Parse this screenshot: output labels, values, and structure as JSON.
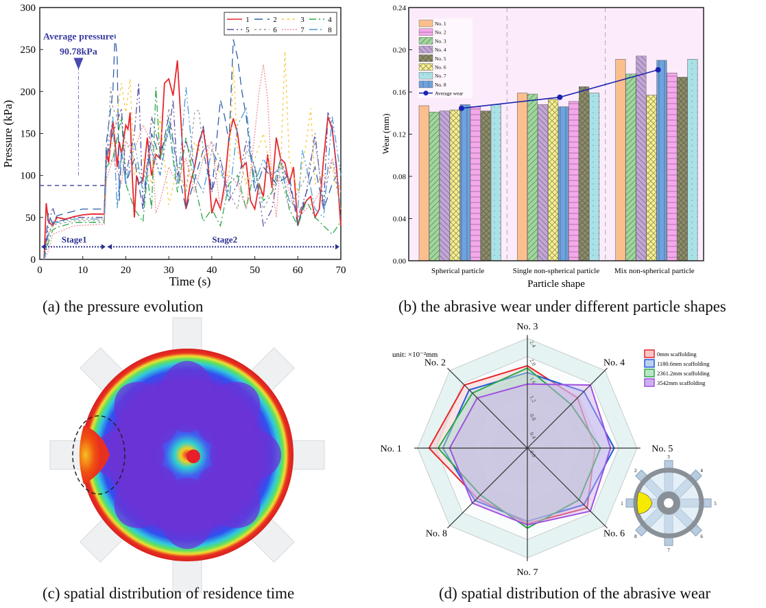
{
  "captions": {
    "a": "(a) the pressure evolution",
    "b": "(b) the abrasive wear under different particle shapes",
    "c": "(c) spatial distribution of residence time",
    "d": "(d) spatial distribution of the abrasive wear"
  },
  "chart_data": [
    {
      "id": "a",
      "type": "line",
      "title": "",
      "xlabel": "Time (s)",
      "ylabel": "Pressure (kPa)",
      "xlim": [
        0,
        70
      ],
      "ylim": [
        0,
        300
      ],
      "xticks": [
        0,
        10,
        20,
        30,
        40,
        50,
        60,
        70
      ],
      "yticks": [
        0,
        50,
        100,
        150,
        200,
        250,
        300
      ],
      "legend_position": "top-right",
      "annotations": {
        "average_label": "Average pressure",
        "average_value": "90.78kPa",
        "average_line_value": 88,
        "stage1": "Stage1",
        "stage2": "Stage2",
        "stage_boundary_x": 15.5
      },
      "series": [
        {
          "name": "1",
          "color": "#e8252b",
          "dash": "",
          "x": [
            1,
            1.5,
            2,
            3,
            4,
            6,
            8,
            10,
            12,
            15,
            15.5,
            16,
            17,
            17.5,
            18,
            18.5,
            19,
            20,
            20.5,
            21,
            21.5,
            22,
            22.5,
            23,
            24,
            25,
            26,
            27,
            28,
            29,
            30,
            31,
            32,
            33,
            34,
            35,
            36,
            37,
            38,
            39,
            40,
            41,
            42,
            43,
            44,
            45,
            46,
            47,
            48,
            49,
            50,
            51,
            52,
            53,
            54,
            55,
            56,
            57,
            58,
            59,
            60,
            61,
            62,
            63,
            64,
            65,
            66,
            67,
            68,
            69,
            70
          ],
          "y": [
            0,
            67,
            45,
            40,
            50,
            48,
            51,
            53,
            54,
            54,
            130,
            115,
            165,
            140,
            110,
            140,
            125,
            160,
            155,
            175,
            100,
            50,
            100,
            90,
            95,
            145,
            100,
            125,
            120,
            210,
            215,
            195,
            237,
            150,
            60,
            90,
            110,
            140,
            155,
            120,
            55,
            72,
            60,
            90,
            145,
            168,
            150,
            110,
            115,
            70,
            60,
            90,
            75,
            125,
            85,
            145,
            120,
            115,
            90,
            110,
            40,
            60,
            70,
            75,
            50,
            60,
            120,
            170,
            155,
            110,
            40
          ]
        },
        {
          "name": "2",
          "color": "#2e5da8",
          "dash": "12,7",
          "x": [
            1,
            2,
            3,
            4,
            6,
            10,
            15,
            15.5,
            16,
            17,
            17.5,
            18,
            18.5,
            19,
            20,
            22,
            24,
            26,
            28,
            30,
            32,
            34,
            36,
            38,
            40,
            42,
            43,
            44,
            45,
            46,
            47,
            48,
            50,
            52,
            55,
            58,
            60,
            62,
            64,
            66,
            68,
            70
          ],
          "y": [
            0,
            55,
            42,
            52,
            55,
            60,
            60,
            140,
            160,
            200,
            268,
            240,
            70,
            130,
            90,
            120,
            60,
            150,
            120,
            170,
            110,
            60,
            95,
            130,
            80,
            190,
            170,
            140,
            262,
            240,
            200,
            170,
            80,
            110,
            90,
            100,
            40,
            80,
            110,
            60,
            90,
            110
          ]
        },
        {
          "name": "3",
          "color": "#f7c52a",
          "dash": "3,5",
          "x": [
            1,
            2,
            3,
            4,
            8,
            15,
            15.5,
            17,
            19,
            20,
            21,
            22,
            24,
            26,
            28,
            30,
            32,
            34,
            36,
            38,
            40,
            42,
            44,
            45,
            46,
            48,
            50,
            52,
            54,
            56,
            57,
            58,
            60,
            62,
            63,
            64,
            66,
            68,
            70
          ],
          "y": [
            0,
            30,
            40,
            46,
            48,
            48,
            120,
            140,
            210,
            175,
            215,
            100,
            120,
            90,
            170,
            65,
            110,
            80,
            140,
            120,
            130,
            100,
            100,
            230,
            130,
            90,
            120,
            150,
            100,
            110,
            248,
            120,
            80,
            140,
            180,
            90,
            100,
            110,
            60
          ]
        },
        {
          "name": "4",
          "color": "#2aa84a",
          "dash": "10,4,2,4",
          "x": [
            1,
            2,
            3,
            4,
            8,
            15,
            15.5,
            17,
            19,
            20,
            22,
            24,
            25,
            26,
            27,
            28,
            30,
            32,
            34,
            36,
            38,
            40,
            42,
            44,
            46,
            48,
            50,
            52,
            54,
            56,
            58,
            60,
            62,
            64,
            66,
            68,
            70
          ],
          "y": [
            0,
            20,
            35,
            38,
            44,
            44,
            110,
            120,
            170,
            90,
            60,
            45,
            100,
            60,
            205,
            120,
            160,
            80,
            145,
            90,
            45,
            60,
            40,
            90,
            100,
            60,
            110,
            70,
            80,
            120,
            60,
            40,
            70,
            50,
            40,
            30,
            45
          ]
        },
        {
          "name": "5",
          "color": "#5a4fa0",
          "dash": "10,4,2,4,2,4",
          "x": [
            1,
            2,
            3,
            4,
            8,
            15,
            15.5,
            17,
            19,
            20,
            22,
            23,
            24,
            26,
            28,
            30,
            31,
            32,
            34,
            36,
            38,
            40,
            42,
            44,
            46,
            48,
            50,
            52,
            54,
            56,
            58,
            60,
            62,
            64,
            66,
            67,
            68,
            70
          ],
          "y": [
            0,
            40,
            62,
            45,
            50,
            50,
            120,
            150,
            180,
            100,
            150,
            210,
            60,
            170,
            130,
            150,
            190,
            100,
            140,
            110,
            160,
            80,
            120,
            70,
            90,
            140,
            110,
            40,
            60,
            120,
            90,
            50,
            80,
            150,
            60,
            175,
            160,
            50
          ]
        },
        {
          "name": "6",
          "color": "#9a9a9a",
          "dash": "3,4",
          "x": [
            1,
            2,
            3,
            4,
            8,
            15,
            15.5,
            16.5,
            17,
            19,
            20,
            22,
            24,
            26,
            28,
            30,
            32,
            34,
            36,
            37,
            38,
            40,
            42,
            44,
            46,
            48,
            50,
            52,
            54,
            56,
            58,
            60,
            62,
            64,
            66,
            68,
            70
          ],
          "y": [
            0,
            25,
            42,
            42,
            46,
            46,
            110,
            205,
            180,
            160,
            140,
            120,
            90,
            140,
            100,
            180,
            110,
            80,
            175,
            178,
            130,
            140,
            120,
            80,
            60,
            130,
            110,
            60,
            80,
            100,
            60,
            80,
            100,
            140,
            70,
            120,
            60
          ]
        },
        {
          "name": "7",
          "color": "#f28b96",
          "dash": "2,2",
          "x": [
            1,
            2,
            3,
            4,
            8,
            15,
            15.5,
            17,
            19,
            20,
            22,
            24,
            26,
            27,
            28,
            30,
            32,
            34,
            36,
            38,
            40,
            42,
            44,
            46,
            48,
            50,
            51,
            52,
            53,
            54,
            55,
            56,
            58,
            60,
            62,
            64,
            66,
            68,
            70
          ],
          "y": [
            0,
            10,
            30,
            32,
            40,
            42,
            95,
            120,
            90,
            140,
            130,
            160,
            140,
            55,
            70,
            110,
            90,
            120,
            80,
            120,
            140,
            60,
            100,
            90,
            60,
            150,
            200,
            232,
            190,
            90,
            50,
            120,
            80,
            50,
            60,
            70,
            90,
            120,
            80
          ]
        },
        {
          "name": "8",
          "color": "#4a9ad8",
          "dash": "12,4,2,4,2,4",
          "x": [
            1,
            2,
            3,
            4,
            8,
            15,
            15.5,
            17,
            18,
            19,
            20,
            22,
            24,
            26,
            28,
            30,
            32,
            33,
            34,
            36,
            38,
            40,
            42,
            44,
            46,
            48,
            50,
            52,
            54,
            56,
            58,
            60,
            61,
            62,
            64,
            66,
            68,
            70
          ],
          "y": [
            0,
            30,
            45,
            44,
            48,
            48,
            120,
            170,
            60,
            130,
            90,
            140,
            80,
            130,
            100,
            160,
            90,
            140,
            205,
            100,
            80,
            130,
            110,
            70,
            160,
            180,
            90,
            120,
            100,
            110,
            70,
            60,
            130,
            110,
            60,
            50,
            170,
            100
          ]
        }
      ]
    },
    {
      "id": "b",
      "type": "bar",
      "title": "",
      "xlabel": "Particle shape",
      "ylabel": "Wear (mm)",
      "ylim": [
        0,
        0.24
      ],
      "yticks": [
        "0.00",
        "0.04",
        "0.08",
        "0.12",
        "0.16",
        "0.20",
        "0.24"
      ],
      "categories": [
        "Spherical particle",
        "Single non-spherical particle",
        "Mix non-spherical particle"
      ],
      "bar_order": [
        "No. 1",
        "No. 3",
        "No. 4",
        "No. 6",
        "No. 8",
        "No. 2",
        "No. 5",
        "No. 7"
      ],
      "legend_position": "top-left",
      "series": [
        {
          "name": "No. 1",
          "color": "#fbbf8e",
          "pattern": "none",
          "values": [
            0.147,
            0.159,
            0.191
          ]
        },
        {
          "name": "No. 2",
          "color": "#f6a8ec",
          "pattern": "hlines",
          "values": [
            0.146,
            0.151,
            0.178
          ]
        },
        {
          "name": "No. 3",
          "color": "#9ed89a",
          "pattern": "diag",
          "values": [
            0.141,
            0.158,
            0.177
          ]
        },
        {
          "name": "No. 4",
          "color": "#c3a6d8",
          "pattern": "antidiag",
          "values": [
            0.142,
            0.148,
            0.194
          ]
        },
        {
          "name": "No. 5",
          "color": "#8c8c66",
          "pattern": "cross",
          "values": [
            0.142,
            0.165,
            0.174
          ]
        },
        {
          "name": "No. 6",
          "color": "#f7f08c",
          "pattern": "xhatch",
          "values": [
            0.143,
            0.153,
            0.157
          ]
        },
        {
          "name": "No. 7",
          "color": "#a9e2e6",
          "pattern": "dots",
          "values": [
            0.148,
            0.159,
            0.191
          ]
        },
        {
          "name": "No. 8",
          "color": "#6ea2e0",
          "pattern": "vlines",
          "values": [
            0.148,
            0.146,
            0.19
          ]
        }
      ],
      "line_series": {
        "name": "Average wear",
        "color": "#1a23b0",
        "values": [
          0.1445,
          0.155,
          0.181
        ]
      }
    },
    {
      "id": "d",
      "type": "radar",
      "unit_label": "unit: ×10⁻²mm",
      "axes": [
        "No. 3",
        "No. 4",
        "No. 5",
        "No. 6",
        "No. 7",
        "No. 8",
        "No. 1",
        "No. 2"
      ],
      "rlim": [
        0,
        2.4
      ],
      "rticks": [
        "0.0",
        "0.4",
        "0.8",
        "1.2",
        "1.6",
        "2.0",
        "2.4"
      ],
      "legend_position": "top-right",
      "series": [
        {
          "name": "0mm scaffolding",
          "color": "#e8252b",
          "fill": "#f5c6c6",
          "values": [
            1.8,
            1.55,
            1.48,
            1.85,
            1.65,
            1.55,
            2.15,
            1.95
          ]
        },
        {
          "name": "1180.6mm scaffolding",
          "color": "#1f5bd8",
          "fill": "#bcd0f2",
          "values": [
            1.65,
            1.75,
            1.9,
            1.75,
            1.6,
            1.62,
            1.85,
            1.8
          ]
        },
        {
          "name": "2361.2mm scaffolding",
          "color": "#2aa84a",
          "fill": "#bde5c5",
          "values": [
            1.75,
            1.35,
            1.6,
            1.6,
            1.75,
            1.45,
            1.95,
            1.7
          ]
        },
        {
          "name": "3542mm scaffolding",
          "color": "#a050e0",
          "fill": "#cfb0ee",
          "values": [
            1.4,
            1.95,
            1.82,
            1.95,
            1.68,
            1.7,
            1.7,
            1.55
          ]
        }
      ],
      "inset_labels": [
        "1",
        "2",
        "3",
        "4",
        "5",
        "6",
        "7",
        "8"
      ]
    }
  ]
}
